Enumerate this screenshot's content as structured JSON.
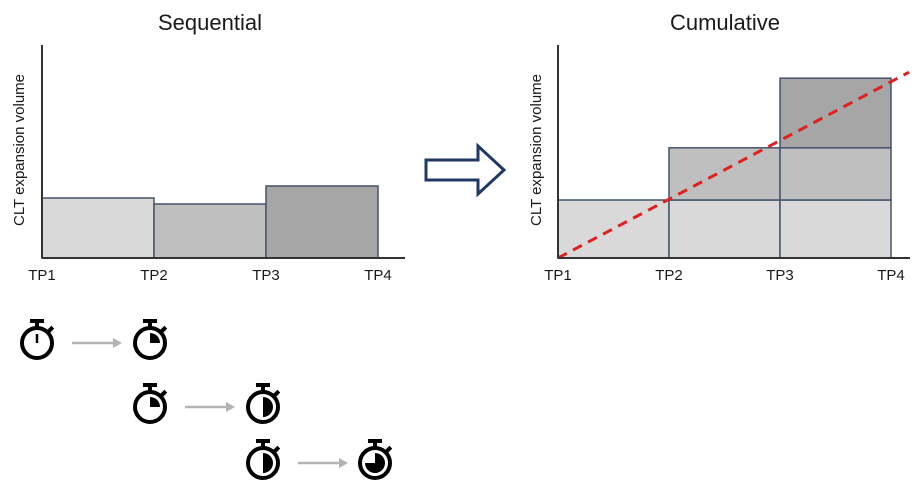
{
  "chart_data": [
    {
      "type": "bar",
      "title": "Sequential",
      "ylabel": "CLT expansion volume",
      "x_ticks": [
        "TP1",
        "TP2",
        "TP3",
        "TP4"
      ],
      "intervals": [
        {
          "from": "TP1",
          "to": "TP2",
          "value": 1.0,
          "color": "#d9d9d9"
        },
        {
          "from": "TP2",
          "to": "TP3",
          "value": 0.9,
          "color": "#bfbfbf"
        },
        {
          "from": "TP3",
          "to": "TP4",
          "value": 1.2,
          "color": "#a6a6a6"
        }
      ]
    },
    {
      "type": "bar",
      "title": "Cumulative",
      "ylabel": "CLT expansion volume",
      "x_ticks": [
        "TP1",
        "TP2",
        "TP3",
        "TP4"
      ],
      "stacks": [
        {
          "from": "TP1",
          "to": "TP2",
          "segments": [
            1.0
          ]
        },
        {
          "from": "TP2",
          "to": "TP3",
          "segments": [
            1.0,
            0.9
          ]
        },
        {
          "from": "TP3",
          "to": "TP4",
          "segments": [
            1.0,
            0.9,
            1.2
          ]
        }
      ],
      "segment_colors": [
        "#d9d9d9",
        "#bfbfbf",
        "#a6a6a6"
      ],
      "trend_line": {
        "color": "#e02020",
        "style": "dashed"
      }
    }
  ],
  "diagram": {
    "arrow_color": "#1f3864",
    "timer_rows": [
      {
        "from_fill": 0.0,
        "to_fill": 0.25
      },
      {
        "from_fill": 0.25,
        "to_fill": 0.5
      },
      {
        "from_fill": 0.5,
        "to_fill": 0.75
      }
    ],
    "timer_arrow_color": "#b3b3b3"
  }
}
